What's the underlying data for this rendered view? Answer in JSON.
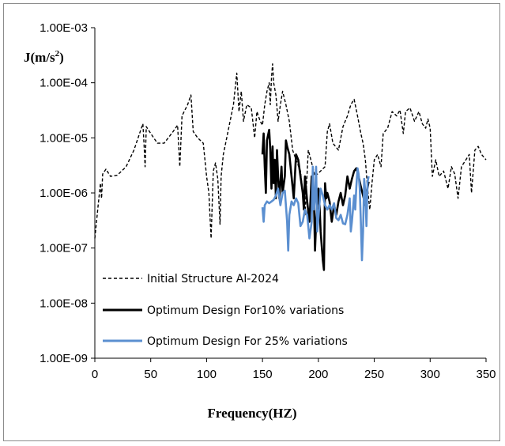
{
  "chart_data": {
    "type": "line",
    "title": "",
    "xlabel": "Frequency(HZ)",
    "ylabel": "J(m/s²)",
    "ylabel_base": "J(m/s",
    "ylabel_sup": "2",
    "ylabel_end": ")",
    "xlim": [
      0,
      350
    ],
    "ylim": [
      1e-09,
      0.001
    ],
    "yscale": "log",
    "grid": false,
    "legend_position": "lower-left",
    "x_ticks": [
      "0",
      "50",
      "100",
      "150",
      "200",
      "250",
      "300",
      "350"
    ],
    "x_tick_values": [
      0,
      50,
      100,
      150,
      200,
      250,
      300,
      350
    ],
    "y_ticks": [
      "1.00E-03",
      "1.00E-04",
      "1.00E-05",
      "1.00E-06",
      "1.00E-07",
      "1.00E-08",
      "1.00E-09"
    ],
    "y_tick_values": [
      0.001,
      0.0001,
      1e-05,
      1e-06,
      1e-07,
      1e-08,
      1e-09
    ],
    "series": [
      {
        "name": "Initial Structure Al-2024",
        "color": "#000000",
        "style": "dashed",
        "points": [
          [
            0,
            1.5e-07
          ],
          [
            3,
            6e-07
          ],
          [
            5,
            1.5e-06
          ],
          [
            6,
            8e-07
          ],
          [
            7,
            2.2e-06
          ],
          [
            10,
            2.7e-06
          ],
          [
            14,
            2e-06
          ],
          [
            20,
            2.1e-06
          ],
          [
            28,
            3e-06
          ],
          [
            35,
            6e-06
          ],
          [
            40,
            1.2e-05
          ],
          [
            43,
            1.8e-05
          ],
          [
            44,
            8e-06
          ],
          [
            45,
            3e-06
          ],
          [
            46,
            1.6e-05
          ],
          [
            50,
            1.2e-05
          ],
          [
            56,
            8e-06
          ],
          [
            62,
            8e-06
          ],
          [
            70,
            1.3e-05
          ],
          [
            74,
            1.7e-05
          ],
          [
            76,
            3e-06
          ],
          [
            78,
            2.5e-05
          ],
          [
            83,
            4e-05
          ],
          [
            86,
            6e-05
          ],
          [
            88,
            1.3e-05
          ],
          [
            92,
            1e-05
          ],
          [
            97,
            8e-06
          ],
          [
            100,
            2e-06
          ],
          [
            102,
            1e-06
          ],
          [
            104,
            1.5e-07
          ],
          [
            106,
            2.5e-06
          ],
          [
            108,
            3.5e-06
          ],
          [
            110,
            1.8e-06
          ],
          [
            112,
            2.7e-07
          ],
          [
            113,
            2e-06
          ],
          [
            115,
            5e-06
          ],
          [
            118,
            1e-05
          ],
          [
            121,
            2e-05
          ],
          [
            124,
            4e-05
          ],
          [
            127,
            0.00015
          ],
          [
            129,
            3e-05
          ],
          [
            131,
            7e-05
          ],
          [
            133,
            2e-05
          ],
          [
            136,
            4e-05
          ],
          [
            140,
            3.5e-05
          ],
          [
            143,
            1e-05
          ],
          [
            145,
            3e-05
          ],
          [
            148,
            2e-05
          ],
          [
            150,
            1.7e-05
          ],
          [
            152,
            4e-05
          ],
          [
            154,
            7e-05
          ],
          [
            156,
            0.0001
          ],
          [
            157,
            4e-05
          ],
          [
            158,
            0.00012
          ],
          [
            159,
            0.00022
          ],
          [
            160,
            0.0001
          ],
          [
            162,
            6e-05
          ],
          [
            164,
            2e-05
          ],
          [
            166,
            4e-05
          ],
          [
            168,
            7e-05
          ],
          [
            171,
            4e-05
          ],
          [
            174,
            2e-05
          ],
          [
            177,
            6e-06
          ],
          [
            180,
            4e-06
          ],
          [
            184,
            2.5e-06
          ],
          [
            188,
            4e-07
          ],
          [
            191,
            6e-06
          ],
          [
            194,
            3.5e-06
          ],
          [
            197,
            2e-06
          ],
          [
            202,
            2.5e-06
          ],
          [
            206,
            3e-06
          ],
          [
            208,
            1.3e-05
          ],
          [
            210,
            1.8e-05
          ],
          [
            213,
            8e-06
          ],
          [
            218,
            6e-06
          ],
          [
            222,
            1.6e-05
          ],
          [
            226,
            2.5e-05
          ],
          [
            229,
            4e-05
          ],
          [
            232,
            5e-05
          ],
          [
            235,
            2.5e-05
          ],
          [
            238,
            1.2e-05
          ],
          [
            240,
            8e-06
          ],
          [
            242,
            4e-06
          ],
          [
            244,
            1.2e-06
          ],
          [
            246,
            5e-07
          ],
          [
            248,
            1.5e-06
          ],
          [
            250,
            4e-06
          ],
          [
            253,
            5e-06
          ],
          [
            256,
            3e-06
          ],
          [
            258,
            1.2e-05
          ],
          [
            262,
            1.5e-05
          ],
          [
            266,
            3e-05
          ],
          [
            270,
            2.5e-05
          ],
          [
            273,
            3.2e-05
          ],
          [
            276,
            1.2e-05
          ],
          [
            278,
            3e-05
          ],
          [
            282,
            3.5e-05
          ],
          [
            286,
            2e-05
          ],
          [
            290,
            3e-05
          ],
          [
            293,
            1.8e-05
          ],
          [
            296,
            1.5e-05
          ],
          [
            298,
            2.2e-05
          ],
          [
            300,
            1.5e-05
          ],
          [
            302,
            2e-06
          ],
          [
            305,
            4e-06
          ],
          [
            308,
            2e-06
          ],
          [
            312,
            2.5e-06
          ],
          [
            316,
            1.2e-06
          ],
          [
            319,
            3e-06
          ],
          [
            322,
            2.2e-06
          ],
          [
            325,
            8e-07
          ],
          [
            328,
            3e-06
          ],
          [
            332,
            4e-06
          ],
          [
            335,
            5e-06
          ],
          [
            337,
            1e-06
          ],
          [
            340,
            6e-06
          ],
          [
            343,
            7e-06
          ],
          [
            346,
            5e-06
          ],
          [
            350,
            4e-06
          ]
        ]
      },
      {
        "name": "Optimum Design For10% variations",
        "color": "#000000",
        "style": "solid",
        "points": [
          [
            150,
            5e-06
          ],
          [
            151,
            1.2e-05
          ],
          [
            152,
            3e-06
          ],
          [
            153,
            1e-06
          ],
          [
            154,
            9e-06
          ],
          [
            156,
            1.4e-05
          ],
          [
            157,
            6e-06
          ],
          [
            158,
            1.2e-06
          ],
          [
            159,
            7e-06
          ],
          [
            160,
            1.5e-06
          ],
          [
            161,
            4e-06
          ],
          [
            162,
            8e-07
          ],
          [
            163,
            6e-06
          ],
          [
            164,
            2e-06
          ],
          [
            165,
            8e-07
          ],
          [
            167,
            3e-06
          ],
          [
            168,
            1e-06
          ],
          [
            170,
            2e-06
          ],
          [
            171,
            9e-06
          ],
          [
            172,
            7e-06
          ],
          [
            174,
            5e-06
          ],
          [
            176,
            2e-06
          ],
          [
            178,
            8e-07
          ],
          [
            180,
            5e-06
          ],
          [
            182,
            4e-06
          ],
          [
            184,
            2e-06
          ],
          [
            186,
            1e-06
          ],
          [
            187,
            5e-07
          ],
          [
            188,
            2e-06
          ],
          [
            190,
            7e-07
          ],
          [
            192,
            3e-07
          ],
          [
            194,
            2e-06
          ],
          [
            196,
            8e-07
          ],
          [
            197,
            9e-08
          ],
          [
            198,
            3e-07
          ],
          [
            200,
            1.2e-06
          ],
          [
            201,
            6e-07
          ],
          [
            202,
            2e-07
          ],
          [
            204,
            6e-08
          ],
          [
            205,
            4e-08
          ],
          [
            206,
            1.5e-06
          ],
          [
            207,
            8e-07
          ],
          [
            208,
            1e-06
          ],
          [
            210,
            7e-07
          ],
          [
            212,
            3e-07
          ],
          [
            214,
            6e-07
          ],
          [
            216,
            4e-07
          ],
          [
            218,
            7e-07
          ],
          [
            220,
            1e-06
          ],
          [
            222,
            6e-07
          ],
          [
            224,
            9e-07
          ],
          [
            226,
            2e-06
          ],
          [
            228,
            1.2e-06
          ],
          [
            230,
            1.8e-06
          ],
          [
            232,
            2.5e-06
          ],
          [
            234,
            2.8e-06
          ],
          [
            236,
            2e-06
          ],
          [
            238,
            1.3e-06
          ],
          [
            240,
            9e-07
          ],
          [
            242,
            6e-07
          ],
          [
            243,
            1e-06
          ],
          [
            245,
            1.6e-06
          ]
        ]
      },
      {
        "name": "Optimum Design For 25% variations",
        "color": "#5b8fd0",
        "style": "solid",
        "points": [
          [
            150,
            5.5e-07
          ],
          [
            151,
            3e-07
          ],
          [
            152,
            6e-07
          ],
          [
            154,
            7e-07
          ],
          [
            156,
            6.5e-07
          ],
          [
            158,
            7e-07
          ],
          [
            160,
            7.5e-07
          ],
          [
            162,
            9e-07
          ],
          [
            164,
            1.2e-06
          ],
          [
            166,
            6e-07
          ],
          [
            168,
            1e-06
          ],
          [
            170,
            1.1e-06
          ],
          [
            172,
            3e-07
          ],
          [
            173,
            9e-08
          ],
          [
            174,
            4e-07
          ],
          [
            176,
            7e-07
          ],
          [
            178,
            6e-07
          ],
          [
            180,
            8e-07
          ],
          [
            182,
            6.5e-07
          ],
          [
            184,
            2.5e-07
          ],
          [
            186,
            3e-07
          ],
          [
            188,
            5e-07
          ],
          [
            190,
            4e-07
          ],
          [
            192,
            1.5e-07
          ],
          [
            194,
            3e-07
          ],
          [
            195,
            3e-06
          ],
          [
            196,
            5e-07
          ],
          [
            197,
            8e-07
          ],
          [
            198,
            3e-06
          ],
          [
            199,
            2e-07
          ],
          [
            200,
            3.5e-07
          ],
          [
            202,
            1.2e-06
          ],
          [
            204,
            9e-07
          ],
          [
            206,
            6e-07
          ],
          [
            208,
            5e-07
          ],
          [
            210,
            6e-07
          ],
          [
            212,
            5e-07
          ],
          [
            214,
            6.5e-07
          ],
          [
            216,
            3.5e-07
          ],
          [
            218,
            3.2e-07
          ],
          [
            220,
            4e-07
          ],
          [
            222,
            2.8e-07
          ],
          [
            224,
            2.7e-07
          ],
          [
            226,
            4e-07
          ],
          [
            228,
            8e-07
          ],
          [
            229,
            2e-07
          ],
          [
            230,
            3e-07
          ],
          [
            232,
            9e-07
          ],
          [
            233,
            5e-07
          ],
          [
            234,
            1.3e-06
          ],
          [
            235,
            2.8e-06
          ],
          [
            236,
            2.2e-06
          ],
          [
            237,
            1.2e-06
          ],
          [
            238,
            3e-07
          ],
          [
            239,
            6e-08
          ],
          [
            240,
            2e-07
          ],
          [
            241,
            1.8e-06
          ],
          [
            242,
            1e-06
          ],
          [
            243,
            2.5e-07
          ],
          [
            244,
            1.6e-06
          ],
          [
            245,
            2e-06
          ]
        ]
      }
    ]
  }
}
